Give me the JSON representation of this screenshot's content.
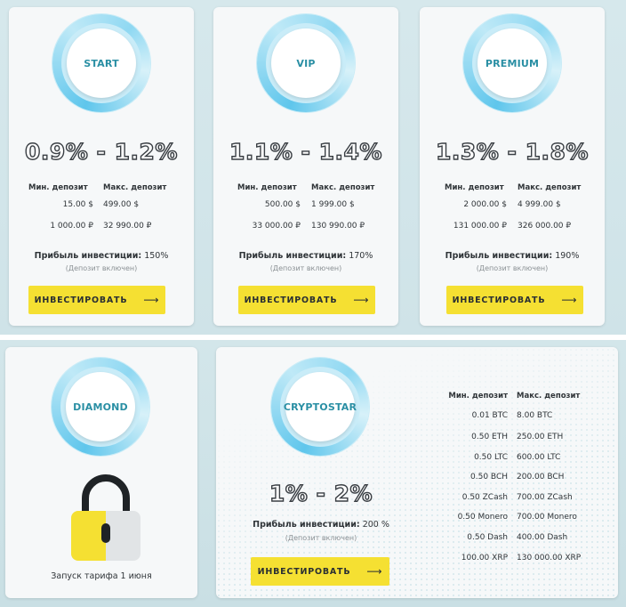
{
  "plans": [
    {
      "name": "START",
      "rate": "0.9% - 1.2%",
      "min_header": "Мин. депозит",
      "max_header": "Макс. депозит",
      "rows": [
        [
          "15.00 $",
          "499.00 $"
        ],
        [
          "1 000.00 ₽",
          "32 990.00 ₽"
        ]
      ],
      "profit_label": "Прибыль инвестиции:",
      "profit_value": "150%",
      "note": "(Депозит включен)",
      "button": "ИНВЕСТИРОВАТЬ"
    },
    {
      "name": "VIP",
      "rate": "1.1% - 1.4%",
      "min_header": "Мин. депозит",
      "max_header": "Макс. депозит",
      "rows": [
        [
          "500.00 $",
          "1 999.00 $"
        ],
        [
          "33 000.00 ₽",
          "130 990.00 ₽"
        ]
      ],
      "profit_label": "Прибыль инвестиции:",
      "profit_value": "170%",
      "note": "(Депозит включен)",
      "button": "ИНВЕСТИРОВАТЬ"
    },
    {
      "name": "PREMIUM",
      "rate": "1.3% - 1.8%",
      "min_header": "Мин. депозит",
      "max_header": "Макс. депозит",
      "rows": [
        [
          "2 000.00 $",
          "4 999.00 $"
        ],
        [
          "131 000.00 ₽",
          "326 000.00 ₽"
        ]
      ],
      "profit_label": "Прибыль инвестиции:",
      "profit_value": "190%",
      "note": "(Депозит включен)",
      "button": "ИНВЕСТИРОВАТЬ"
    }
  ],
  "diamond": {
    "name": "DIAMOND",
    "icon": "padlock-icon",
    "launch_text": "Запуск тарифа 1 июня",
    "colors": {
      "lock_yellow": "#f5e032",
      "lock_gray": "#e1e4e6",
      "shackle": "#1f2326"
    }
  },
  "cryptostar": {
    "name": "CRYPTOSTAR",
    "rate": "1% - 2%",
    "profit_label": "Прибыль инвестиции:",
    "profit_value": "200 %",
    "note": "(Депозит включен)",
    "button": "ИНВЕСТИРОВАТЬ",
    "min_header": "Мин. депозит",
    "max_header": "Макс. депозит",
    "rows": [
      [
        "0.01 BTC",
        "8.00 BTC"
      ],
      [
        "0.50 ETH",
        "250.00 ETH"
      ],
      [
        "0.50 LTC",
        "600.00 LTC"
      ],
      [
        "0.50 BCH",
        "200.00 BCH"
      ],
      [
        "0.50 ZCash",
        "700.00 ZCash"
      ],
      [
        "0.50 Monero",
        "700.00 Monero"
      ],
      [
        "0.50 Dash",
        "400.00 Dash"
      ],
      [
        "100.00 XRP",
        "130 000.00 XRP"
      ]
    ]
  },
  "icons": {
    "button_arrow": "arrow-right-icon"
  },
  "colors": {
    "button": "#f5e032",
    "ring": "#5fc6ec",
    "plan_name": "#2a8fa4",
    "background": "#d6e8ec"
  }
}
